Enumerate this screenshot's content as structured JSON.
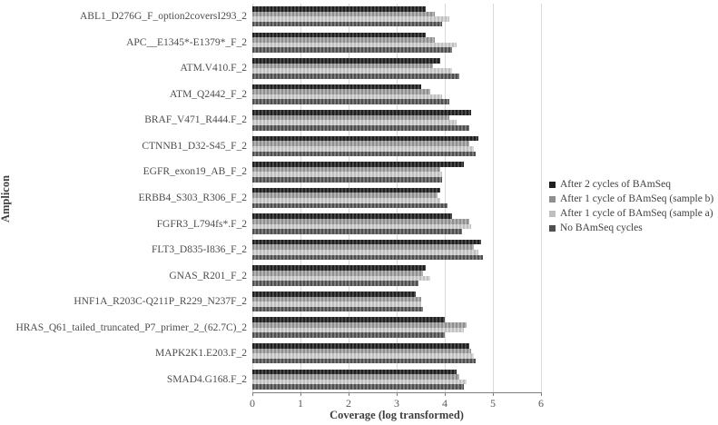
{
  "chart_data": {
    "type": "bar",
    "orientation": "horizontal",
    "title": "",
    "xlabel": "Coverage (log transformed)",
    "ylabel": "Amplicon",
    "xlim": [
      0,
      6
    ],
    "xticks": [
      0,
      1,
      2,
      3,
      4,
      5,
      6
    ],
    "grid": true,
    "legend_position": "right",
    "categories": [
      "ABL1_D276G_F_option2coversI293_2",
      "APC__E1345*-E1379*_F_2",
      "ATM.V410.F_2",
      "ATM_Q2442_F_2",
      "BRAF_V471_R444.F_2",
      "CTNNB1_D32-S45_F_2",
      "EGFR_exon19_AB_F_2",
      "ERBB4_S303_R306_F_2",
      "FGFR3_L794fs*.F_2",
      "FLT3_D835-I836_F_2",
      "GNAS_R201_F_2",
      "HNF1A_R203C-Q211P_R229_N237F_2",
      "HRAS_Q61_tailed_truncated_P7_primer_2_(62.7C)_2",
      "MAPK2K1.E203.F_2",
      "SMAD4.G168.F_2"
    ],
    "series": [
      {
        "name": "After 2 cycles of BAmSeq",
        "color": "#1f1f1f",
        "stripe": "#4a4a4a",
        "values": [
          3.6,
          3.6,
          3.9,
          3.5,
          4.55,
          4.7,
          4.4,
          3.9,
          4.15,
          4.75,
          3.6,
          3.4,
          4.0,
          4.5,
          4.25
        ]
      },
      {
        "name": "After 1 cycle of BAmSeq (sample b)",
        "color": "#8f8f8f",
        "stripe": "#b3b3b3",
        "values": [
          3.8,
          3.8,
          3.75,
          3.7,
          4.1,
          4.5,
          3.9,
          3.85,
          4.5,
          4.6,
          3.55,
          3.5,
          4.45,
          4.55,
          4.3
        ]
      },
      {
        "name": "After 1 cycle of BAmSeq (sample a)",
        "color": "#bfbfbf",
        "stripe": "#d9d9d9",
        "values": [
          4.1,
          4.25,
          4.15,
          3.95,
          4.25,
          4.6,
          3.95,
          3.9,
          4.55,
          4.7,
          3.7,
          3.5,
          4.4,
          4.6,
          4.45
        ]
      },
      {
        "name": "No BAmSeq cycles",
        "color": "#4f4f4f",
        "stripe": "#7d7d7d",
        "values": [
          3.95,
          4.15,
          4.3,
          4.1,
          4.5,
          4.65,
          3.95,
          4.05,
          4.35,
          4.8,
          3.45,
          3.55,
          4.0,
          4.65,
          4.4
        ]
      }
    ]
  }
}
